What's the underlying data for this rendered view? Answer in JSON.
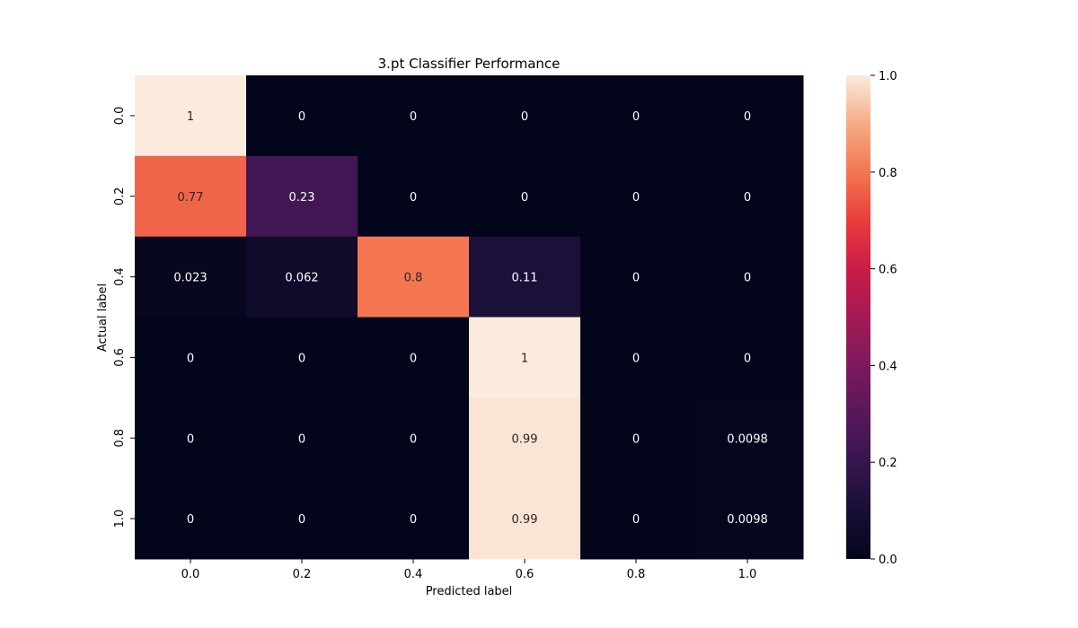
{
  "chart_data": {
    "type": "heatmap",
    "title": "3.pt Classifier Performance",
    "xlabel": "Predicted label",
    "ylabel": "Actual label",
    "x_categories": [
      "0.0",
      "0.2",
      "0.4",
      "0.6",
      "0.8",
      "1.0"
    ],
    "y_categories": [
      "0.0",
      "0.2",
      "0.4",
      "0.6",
      "0.8",
      "1.0"
    ],
    "values": [
      [
        1,
        0,
        0,
        0,
        0,
        0
      ],
      [
        0.77,
        0.23,
        0,
        0,
        0,
        0
      ],
      [
        0.023,
        0.062,
        0.8,
        0.11,
        0,
        0
      ],
      [
        0,
        0,
        0,
        1,
        0,
        0
      ],
      [
        0,
        0,
        0,
        0.99,
        0,
        0.0098
      ],
      [
        0,
        0,
        0,
        0.99,
        0,
        0.0098
      ]
    ],
    "annotations": [
      [
        "1",
        "0",
        "0",
        "0",
        "0",
        "0"
      ],
      [
        "0.77",
        "0.23",
        "0",
        "0",
        "0",
        "0"
      ],
      [
        "0.023",
        "0.062",
        "0.8",
        "0.11",
        "0",
        "0"
      ],
      [
        "0",
        "0",
        "0",
        "1",
        "0",
        "0"
      ],
      [
        "0",
        "0",
        "0",
        "0.99",
        "0",
        "0.0098"
      ],
      [
        "0",
        "0",
        "0",
        "0.99",
        "0",
        "0.0098"
      ]
    ],
    "colorbar": {
      "range": [
        0,
        1
      ],
      "ticks": [
        "0.0",
        "0.2",
        "0.4",
        "0.6",
        "0.8",
        "1.0"
      ],
      "colormap": "rocket",
      "low_color": "#03051a",
      "high_color": "#faebdd"
    },
    "grid": false,
    "legend": "colorbar-right"
  }
}
